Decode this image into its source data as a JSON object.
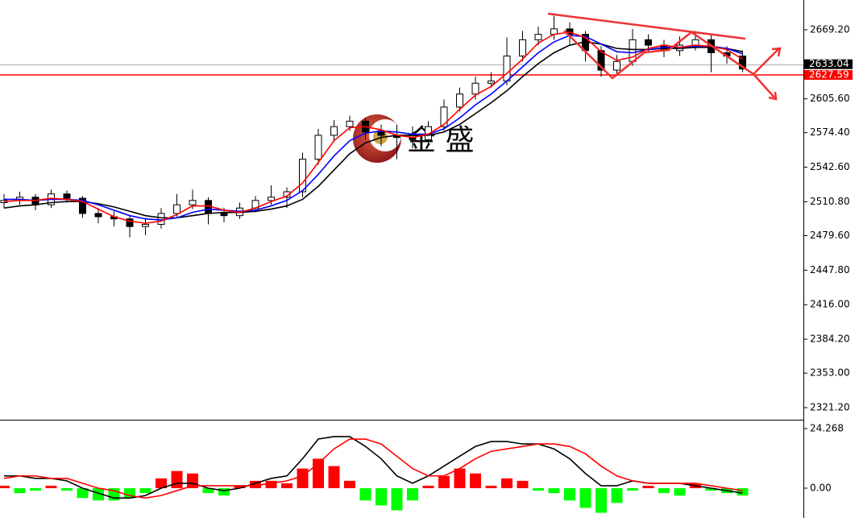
{
  "chart_data": {
    "type": "candlestick",
    "watermark": "金 盛",
    "open": [
      2510,
      2512,
      2515,
      2508,
      2518,
      2514,
      2500,
      2497,
      2495,
      2488,
      2490,
      2500,
      2508,
      2512,
      2500,
      2498,
      2505,
      2512,
      2515,
      2520,
      2550,
      2572,
      2580,
      2585,
      2575,
      2572,
      2570,
      2568,
      2580,
      2598,
      2610,
      2620,
      2622,
      2645,
      2660,
      2665,
      2670,
      2665,
      2650,
      2632,
      2640,
      2660,
      2655,
      2650,
      2655,
      2660,
      2648,
      2645
    ],
    "high": [
      2518,
      2520,
      2518,
      2522,
      2521,
      2516,
      2505,
      2502,
      2498,
      2496,
      2505,
      2518,
      2522,
      2515,
      2505,
      2510,
      2516,
      2526,
      2524,
      2556,
      2578,
      2586,
      2590,
      2588,
      2582,
      2582,
      2580,
      2585,
      2605,
      2616,
      2626,
      2630,
      2662,
      2668,
      2672,
      2682,
      2676,
      2668,
      2654,
      2646,
      2670,
      2665,
      2660,
      2663,
      2668,
      2664,
      2654,
      2650
    ],
    "low": [
      2505,
      2508,
      2503,
      2505,
      2510,
      2496,
      2491,
      2488,
      2478,
      2480,
      2486,
      2497,
      2504,
      2490,
      2492,
      2495,
      2501,
      2508,
      2505,
      2515,
      2545,
      2566,
      2576,
      2568,
      2562,
      2550,
      2560,
      2563,
      2576,
      2594,
      2605,
      2616,
      2618,
      2640,
      2655,
      2660,
      2656,
      2640,
      2626,
      2628,
      2636,
      2648,
      2644,
      2645,
      2650,
      2630,
      2638,
      2630
    ],
    "close": [
      2512,
      2515,
      2508,
      2518,
      2514,
      2500,
      2497,
      2495,
      2488,
      2490,
      2500,
      2508,
      2512,
      2500,
      2498,
      2505,
      2512,
      2515,
      2520,
      2550,
      2572,
      2580,
      2585,
      2575,
      2572,
      2570,
      2568,
      2580,
      2598,
      2610,
      2620,
      2622,
      2645,
      2660,
      2665,
      2670,
      2665,
      2650,
      2632,
      2640,
      2660,
      2655,
      2650,
      2655,
      2660,
      2648,
      2645,
      2633.04
    ],
    "series": [
      {
        "color": "#000000",
        "values": [
          2505,
          2507,
          2508,
          2510,
          2511,
          2511,
          2509,
          2506,
          2502,
          2498,
          2496,
          2496,
          2498,
          2500,
          2501,
          2501,
          2502,
          2504,
          2507,
          2513,
          2525,
          2540,
          2555,
          2565,
          2570,
          2572,
          2572,
          2572,
          2575,
          2582,
          2592,
          2602,
          2613,
          2626,
          2638,
          2648,
          2655,
          2658,
          2656,
          2652,
          2651,
          2651,
          2652,
          2652,
          2653,
          2653,
          2652,
          2649
        ]
      },
      {
        "color": "#0000ff",
        "values": [
          2513,
          2513,
          2512,
          2513,
          2513,
          2512,
          2508,
          2503,
          2498,
          2495,
          2494,
          2496,
          2501,
          2504,
          2503,
          2502,
          2503,
          2507,
          2512,
          2521,
          2536,
          2553,
          2567,
          2574,
          2576,
          2575,
          2573,
          2573,
          2578,
          2588,
          2600,
          2610,
          2622,
          2635,
          2648,
          2658,
          2664,
          2663,
          2656,
          2649,
          2648,
          2651,
          2653,
          2653,
          2654,
          2654,
          2652,
          2647
        ]
      },
      {
        "color": "#ff0000",
        "values": [
          2511,
          2512,
          2512,
          2514,
          2513,
          2511,
          2504,
          2497,
          2493,
          2491,
          2493,
          2499,
          2507,
          2507,
          2503,
          2501,
          2505,
          2511,
          2516,
          2528,
          2547,
          2567,
          2579,
          2580,
          2577,
          2572,
          2570,
          2573,
          2582,
          2596,
          2609,
          2617,
          2629,
          2642,
          2657,
          2665,
          2667,
          2662,
          2649,
          2641,
          2644,
          2652,
          2655,
          2653,
          2655,
          2654,
          2651,
          2642
        ]
      }
    ],
    "ylim": [
      2310.8,
      2696.6
    ],
    "yticks": [
      {
        "value": 2669.2,
        "label": "2669.20"
      },
      {
        "value": 2605.6,
        "label": "2605.60"
      },
      {
        "value": 2574.4,
        "label": "2574.40"
      },
      {
        "value": 2542.6,
        "label": "2542.60"
      },
      {
        "value": 2510.8,
        "label": "2510.80"
      },
      {
        "value": 2479.6,
        "label": "2479.60"
      },
      {
        "value": 2447.8,
        "label": "2447.80"
      },
      {
        "value": 2416,
        "label": "2416.00"
      },
      {
        "value": 2384.2,
        "label": "2384.20"
      },
      {
        "value": 2353,
        "label": "2353.00"
      },
      {
        "value": 2321.2,
        "label": "2321.20"
      }
    ],
    "last_price": 2633.04,
    "level_line": 2627.59,
    "macd": {
      "ylim": [
        -12.13,
        26.89
      ],
      "yticks": [
        24.268,
        {
          "value": 0,
          "label": "0.00"
        }
      ],
      "histogram": [
        1,
        -2,
        -1,
        1,
        -1,
        -4,
        -5,
        -5,
        -4,
        -2,
        4,
        7,
        6,
        -2,
        -3,
        1,
        3,
        3,
        2,
        8,
        12,
        9,
        3,
        -5,
        -7,
        -9,
        -5,
        1,
        5,
        8,
        6,
        1,
        4,
        3,
        -1,
        -2,
        -5,
        -8,
        -10,
        -6,
        -1,
        1,
        -2,
        -3,
        2,
        -1,
        -2,
        -3
      ],
      "positive_color": "#ff0000",
      "negative_color": "#00ff00",
      "lines": [
        {
          "color": "#000000",
          "values": [
            5,
            5,
            4,
            4,
            3,
            0,
            -2,
            -4,
            -4,
            -3,
            0,
            2,
            2,
            0,
            -1,
            0,
            2,
            4,
            5,
            12,
            20,
            21,
            21,
            17,
            12,
            5,
            2,
            5,
            9,
            13,
            17,
            19,
            19,
            18,
            18,
            16,
            12,
            6,
            1,
            1,
            3,
            2,
            2,
            2,
            1,
            0,
            -1,
            -2
          ]
        },
        {
          "color": "#ff0000",
          "values": [
            4,
            5,
            5,
            4,
            4,
            2,
            0,
            -1,
            -3,
            -4,
            -3,
            -1,
            1,
            1,
            1,
            1,
            1,
            2,
            3,
            5,
            10,
            16,
            20,
            20,
            18,
            13,
            8,
            5,
            5,
            8,
            12,
            15,
            16,
            17,
            18,
            18,
            17,
            14,
            9,
            5,
            3,
            2,
            2,
            2,
            2,
            1,
            0,
            -1
          ]
        }
      ]
    }
  }
}
